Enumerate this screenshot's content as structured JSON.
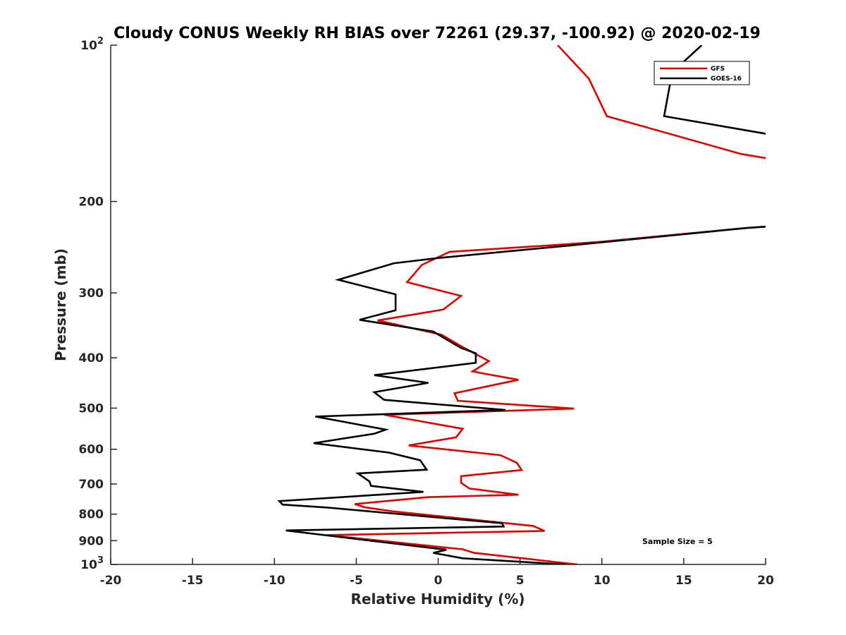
{
  "chart_data": {
    "type": "line",
    "title": "Cloudy CONUS Weekly RH BIAS over 72261 (29.37, -100.92) @ 2020-02-19",
    "xlabel": "Relative Humidity (%)",
    "ylabel": "Pressure (mb)",
    "xlim": [
      -20,
      20
    ],
    "ylim": [
      100,
      1000
    ],
    "yscale": "log",
    "y_reversed": true,
    "x_ticks": [
      "-20",
      "-15",
      "-10",
      "-5",
      "0",
      "5",
      "10",
      "15",
      "20"
    ],
    "y_ticks": [
      {
        "value": 100,
        "base": "10",
        "exp": "2"
      },
      {
        "value": 200,
        "label": "200"
      },
      {
        "value": 300,
        "label": "300"
      },
      {
        "value": 400,
        "label": "400"
      },
      {
        "value": 500,
        "label": "500"
      },
      {
        "value": 600,
        "label": "600"
      },
      {
        "value": 700,
        "label": "700"
      },
      {
        "value": 800,
        "label": "800"
      },
      {
        "value": 900,
        "label": "900"
      },
      {
        "value": 1000,
        "base": "10",
        "exp": "3"
      }
    ],
    "legend_position": "top-right",
    "grid": false,
    "annotation": "Sample Size = 5",
    "series": [
      {
        "name": "GFS",
        "color": "#e00000",
        "points": [
          [
            7.3,
            100
          ],
          [
            9.2,
            116
          ],
          [
            10.3,
            137
          ],
          [
            18.5,
            162
          ],
          [
            20.5,
            166
          ],
          [
            20.5,
            223
          ],
          [
            18.8,
            225
          ],
          [
            10,
            239
          ],
          [
            6.8,
            243
          ],
          [
            0.7,
            250
          ],
          [
            -1,
            265
          ],
          [
            -1.9,
            286
          ],
          [
            1.4,
            304
          ],
          [
            0.3,
            323
          ],
          [
            -3.7,
            339
          ],
          [
            0.2,
            361
          ],
          [
            1.6,
            383
          ],
          [
            3.1,
            406
          ],
          [
            2.1,
            425
          ],
          [
            4.9,
            441
          ],
          [
            1,
            468
          ],
          [
            1.2,
            484
          ],
          [
            8.3,
            501
          ],
          [
            -3.3,
            515
          ],
          [
            1.5,
            548
          ],
          [
            1.1,
            569
          ],
          [
            -1.8,
            590
          ],
          [
            3.8,
            616
          ],
          [
            4.8,
            637
          ],
          [
            5.1,
            658
          ],
          [
            1.4,
            676
          ],
          [
            1.4,
            696
          ],
          [
            1.9,
            714
          ],
          [
            4.9,
            734
          ],
          [
            -0.6,
            742
          ],
          [
            -5.1,
            765
          ],
          [
            -4.5,
            776
          ],
          [
            -2.8,
            790
          ],
          [
            5.8,
            843
          ],
          [
            6.5,
            862
          ],
          [
            -6.8,
            878
          ],
          [
            1.5,
            935
          ],
          [
            2.2,
            950
          ],
          [
            8.5,
            1000
          ]
        ]
      },
      {
        "name": "GOES-16",
        "color": "#000000",
        "points": [
          [
            16.1,
            100
          ],
          [
            14.4,
            112
          ],
          [
            14.2,
            117
          ],
          [
            13.8,
            137
          ],
          [
            20.5,
            149
          ],
          [
            20.5,
            223
          ],
          [
            18.8,
            225
          ],
          [
            8.1,
            243
          ],
          [
            0,
            257
          ],
          [
            -2.7,
            263
          ],
          [
            -6.1,
            283
          ],
          [
            -2.6,
            302
          ],
          [
            -2.6,
            324
          ],
          [
            -4.8,
            338
          ],
          [
            -0.3,
            356
          ],
          [
            1.4,
            383
          ],
          [
            2.3,
            392
          ],
          [
            2.3,
            409
          ],
          [
            -3.9,
            432
          ],
          [
            -0.6,
            447
          ],
          [
            -3.9,
            466
          ],
          [
            -3.3,
            482
          ],
          [
            4.1,
            504
          ],
          [
            -7.5,
            519
          ],
          [
            -3.2,
            550
          ],
          [
            -3.9,
            560
          ],
          [
            -7.6,
            584
          ],
          [
            -3,
            609
          ],
          [
            -1.1,
            630
          ],
          [
            -0.7,
            657
          ],
          [
            -4.9,
            668
          ],
          [
            -4.2,
            692
          ],
          [
            -4.1,
            706
          ],
          [
            -0.9,
            725
          ],
          [
            -9.7,
            755
          ],
          [
            -9.5,
            767
          ],
          [
            -6.8,
            777
          ],
          [
            3.9,
            833
          ],
          [
            4,
            845
          ],
          [
            -9.3,
            860
          ],
          [
            0.5,
            937
          ],
          [
            -0.3,
            950
          ],
          [
            1.5,
            973
          ],
          [
            7.8,
            1000
          ]
        ]
      }
    ]
  }
}
